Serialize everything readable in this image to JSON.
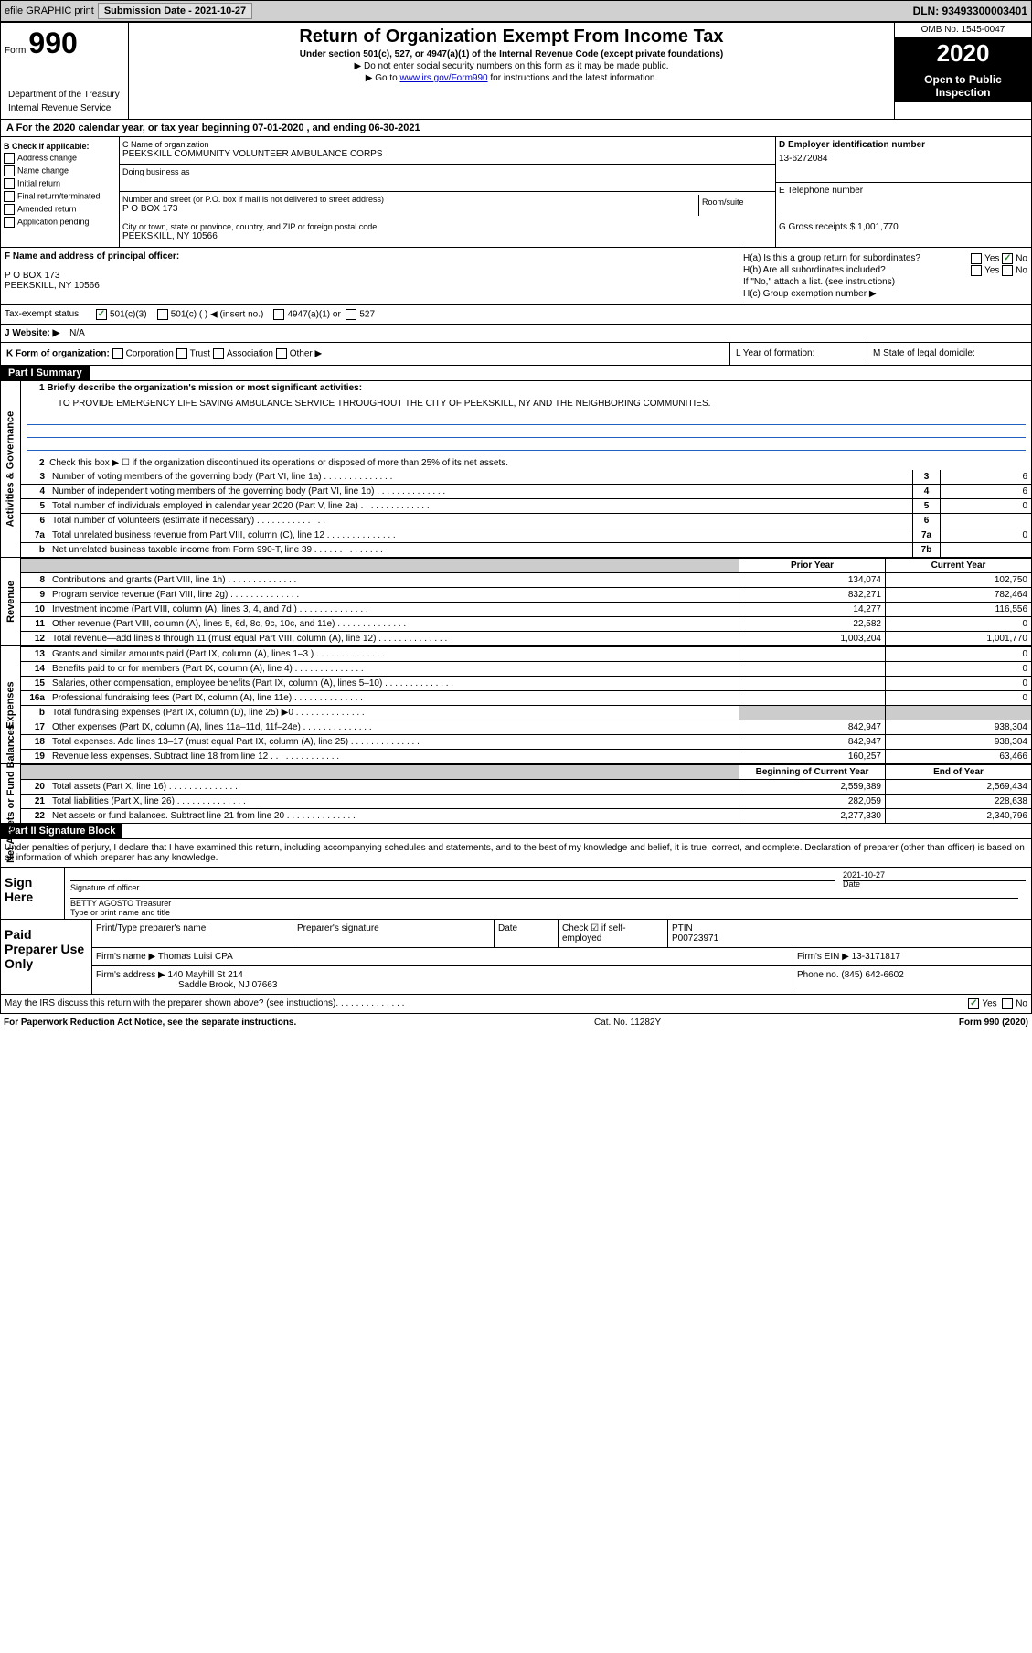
{
  "top": {
    "efile": "efile GRAPHIC print",
    "sub_date_label": "Submission Date - 2021-10-27",
    "dln": "DLN: 93493300003401"
  },
  "header": {
    "form_label": "Form",
    "form_num": "990",
    "title": "Return of Organization Exempt From Income Tax",
    "subtitle": "Under section 501(c), 527, or 4947(a)(1) of the Internal Revenue Code (except private foundations)",
    "note1": "▶ Do not enter social security numbers on this form as it may be made public.",
    "note2_prefix": "▶ Go to ",
    "note2_link": "www.irs.gov/Form990",
    "note2_suffix": " for instructions and the latest information.",
    "dept1": "Department of the Treasury",
    "dept2": "Internal Revenue Service",
    "omb": "OMB No. 1545-0047",
    "year": "2020",
    "open": "Open to Public Inspection"
  },
  "period": "A For the 2020 calendar year, or tax year beginning 07-01-2020    , and ending 06-30-2021",
  "col_b": {
    "label": "B Check if applicable:",
    "addr": "Address change",
    "name": "Name change",
    "init": "Initial return",
    "final": "Final return/terminated",
    "amend": "Amended return",
    "app": "Application pending"
  },
  "col_c": {
    "name_label": "C Name of organization",
    "name": "PEEKSKILL COMMUNITY VOLUNTEER AMBULANCE CORPS",
    "dba_label": "Doing business as",
    "addr_label": "Number and street (or P.O. box if mail is not delivered to street address)",
    "room_label": "Room/suite",
    "addr": "P O BOX 173",
    "city_label": "City or town, state or province, country, and ZIP or foreign postal code",
    "city": "PEEKSKILL, NY  10566"
  },
  "col_d": {
    "d_label": "D Employer identification number",
    "ein": "13-6272084",
    "e_label": "E Telephone number",
    "g_label": "G Gross receipts $ 1,001,770"
  },
  "officer": {
    "f_label": "F  Name and address of principal officer:",
    "addr1": "P O BOX 173",
    "addr2": "PEEKSKILL, NY  10566",
    "ha": "H(a)  Is this a group return for subordinates?",
    "hb": "H(b)  Are all subordinates included?",
    "hb_note": "If \"No,\" attach a list. (see instructions)",
    "hc": "H(c)  Group exemption number ▶",
    "yes": "Yes",
    "no": "No"
  },
  "tax_status": {
    "label": "Tax-exempt status:",
    "c3": "501(c)(3)",
    "c": "501(c) (  ) ◀ (insert no.)",
    "a1": "4947(a)(1) or",
    "s527": "527"
  },
  "website": {
    "label": "J Website: ▶",
    "value": "N/A"
  },
  "k": {
    "label": "K Form of organization:",
    "corp": "Corporation",
    "trust": "Trust",
    "assoc": "Association",
    "other": "Other ▶",
    "l": "L Year of formation:",
    "m": "M State of legal domicile:"
  },
  "part1": {
    "header": "Part I      Summary",
    "l1": "1  Briefly describe the organization's mission or most significant activities:",
    "mission": "TO PROVIDE EMERGENCY LIFE SAVING AMBULANCE SERVICE THROUGHOUT THE CITY OF PEEKSKILL, NY AND THE NEIGHBORING COMMUNITIES.",
    "l2": "Check this box ▶ ☐  if the organization discontinued its operations or disposed of more than 25% of its net assets.",
    "tabs": {
      "gov": "Activities & Governance",
      "rev": "Revenue",
      "exp": "Expenses",
      "net": "Net Assets or Fund Balances"
    },
    "rows_gov": [
      {
        "n": "3",
        "label": "Number of voting members of the governing body (Part VI, line 1a)",
        "box": "3",
        "val": "6"
      },
      {
        "n": "4",
        "label": "Number of independent voting members of the governing body (Part VI, line 1b)",
        "box": "4",
        "val": "6"
      },
      {
        "n": "5",
        "label": "Total number of individuals employed in calendar year 2020 (Part V, line 2a)",
        "box": "5",
        "val": "0"
      },
      {
        "n": "6",
        "label": "Total number of volunteers (estimate if necessary)",
        "box": "6",
        "val": ""
      },
      {
        "n": "7a",
        "label": "Total unrelated business revenue from Part VIII, column (C), line 12",
        "box": "7a",
        "val": "0"
      },
      {
        "n": "b",
        "label": "Net unrelated business taxable income from Form 990-T, line 39",
        "box": "7b",
        "val": ""
      }
    ],
    "py_label": "Prior Year",
    "cy_label": "Current Year",
    "rows_rev": [
      {
        "n": "8",
        "label": "Contributions and grants (Part VIII, line 1h)",
        "py": "134,074",
        "cy": "102,750"
      },
      {
        "n": "9",
        "label": "Program service revenue (Part VIII, line 2g)",
        "py": "832,271",
        "cy": "782,464"
      },
      {
        "n": "10",
        "label": "Investment income (Part VIII, column (A), lines 3, 4, and 7d )",
        "py": "14,277",
        "cy": "116,556"
      },
      {
        "n": "11",
        "label": "Other revenue (Part VIII, column (A), lines 5, 6d, 8c, 9c, 10c, and 11e)",
        "py": "22,582",
        "cy": "0"
      },
      {
        "n": "12",
        "label": "Total revenue—add lines 8 through 11 (must equal Part VIII, column (A), line 12)",
        "py": "1,003,204",
        "cy": "1,001,770"
      }
    ],
    "rows_exp": [
      {
        "n": "13",
        "label": "Grants and similar amounts paid (Part IX, column (A), lines 1–3 )",
        "py": "",
        "cy": "0"
      },
      {
        "n": "14",
        "label": "Benefits paid to or for members (Part IX, column (A), line 4)",
        "py": "",
        "cy": "0"
      },
      {
        "n": "15",
        "label": "Salaries, other compensation, employee benefits (Part IX, column (A), lines 5–10)",
        "py": "",
        "cy": "0"
      },
      {
        "n": "16a",
        "label": "Professional fundraising fees (Part IX, column (A), line 11e)",
        "py": "",
        "cy": "0"
      },
      {
        "n": "b",
        "label": "Total fundraising expenses (Part IX, column (D), line 25) ▶0",
        "py": "shaded",
        "cy": "shaded"
      },
      {
        "n": "17",
        "label": "Other expenses (Part IX, column (A), lines 11a–11d, 11f–24e)",
        "py": "842,947",
        "cy": "938,304"
      },
      {
        "n": "18",
        "label": "Total expenses. Add lines 13–17 (must equal Part IX, column (A), line 25)",
        "py": "842,947",
        "cy": "938,304"
      },
      {
        "n": "19",
        "label": "Revenue less expenses. Subtract line 18 from line 12",
        "py": "160,257",
        "cy": "63,466"
      }
    ],
    "boy_label": "Beginning of Current Year",
    "eoy_label": "End of Year",
    "rows_net": [
      {
        "n": "20",
        "label": "Total assets (Part X, line 16)",
        "py": "2,559,389",
        "cy": "2,569,434"
      },
      {
        "n": "21",
        "label": "Total liabilities (Part X, line 26)",
        "py": "282,059",
        "cy": "228,638"
      },
      {
        "n": "22",
        "label": "Net assets or fund balances. Subtract line 21 from line 20",
        "py": "2,277,330",
        "cy": "2,340,796"
      }
    ]
  },
  "part2": {
    "header": "Part II      Signature Block",
    "perj": "Under penalties of perjury, I declare that I have examined this return, including accompanying schedules and statements, and to the best of my knowledge and belief, it is true, correct, and complete. Declaration of preparer (other than officer) is based on all information of which preparer has any knowledge.",
    "sign_here": "Sign Here",
    "sig_officer": "Signature of officer",
    "date": "Date",
    "date_val": "2021-10-27",
    "name_title": "BETTY AGOSTO  Treasurer",
    "name_label": "Type or print name and title",
    "paid": "Paid Preparer Use Only",
    "prep_name_label": "Print/Type preparer's name",
    "prep_sig_label": "Preparer's signature",
    "prep_date_label": "Date",
    "self_emp": "Check ☑ if self-employed",
    "ptin_label": "PTIN",
    "ptin": "P00723971",
    "firm_name_label": "Firm's name    ▶",
    "firm_name": "Thomas Luisi CPA",
    "firm_ein_label": "Firm's EIN ▶",
    "firm_ein": "13-3171817",
    "firm_addr_label": "Firm's address ▶",
    "firm_addr1": "140 Mayhill St 214",
    "firm_addr2": "Saddle Brook, NJ  07663",
    "phone_label": "Phone no.",
    "phone": "(845) 642-6602",
    "discuss": "May the IRS discuss this return with the preparer shown above? (see instructions)",
    "yes": "Yes",
    "no": "No"
  },
  "footer": {
    "left": "For Paperwork Reduction Act Notice, see the separate instructions.",
    "center": "Cat. No. 11282Y",
    "right": "Form 990 (2020)"
  }
}
